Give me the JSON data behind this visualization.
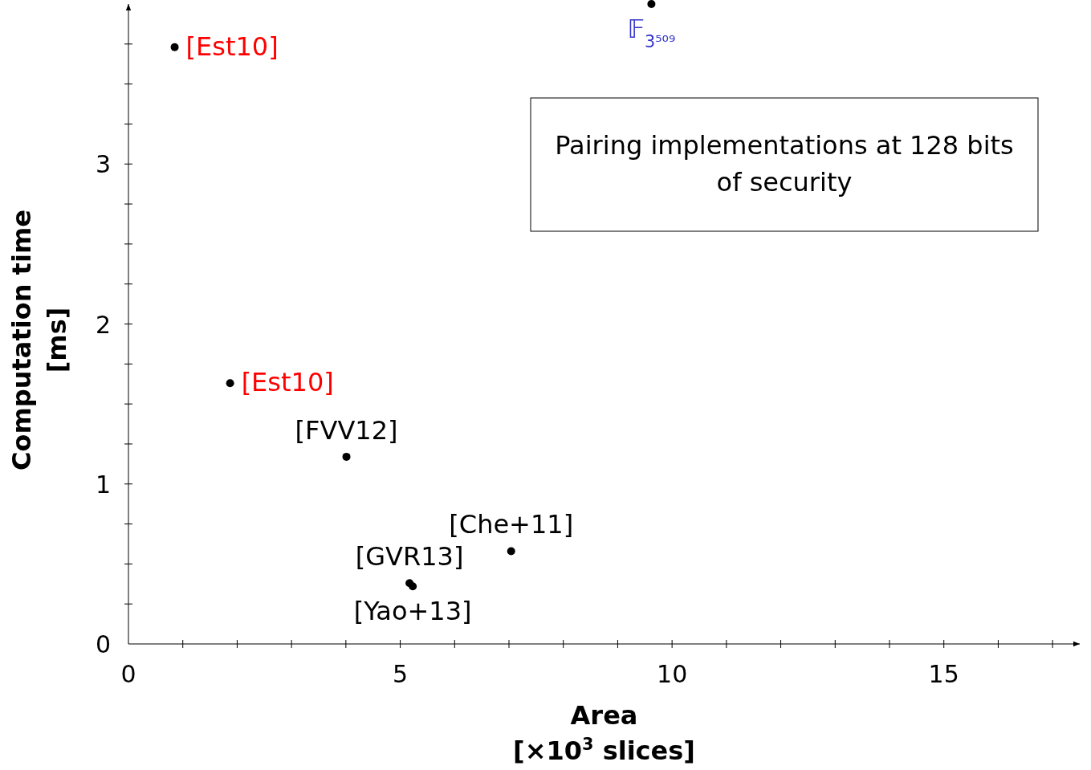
{
  "chart_data": {
    "type": "scatter",
    "xlabel": "Area\n[×10$^{3}$ slices]",
    "ylabel": "Computation time\n[ms]",
    "x": [
      0.85,
      1.87,
      4.01,
      7.04,
      5.17,
      5.23,
      9.62
    ],
    "values": [
      3.73,
      1.63,
      1.17,
      0.58,
      0.38,
      0.36,
      4.0
    ],
    "color": "#000000",
    "marker": "circle",
    "grid": false,
    "xlim": [
      0,
      17.5
    ],
    "ylim": [
      0,
      4
    ],
    "xticks": [
      0,
      {
        "value": 1,
        "label": null
      },
      {
        "value": 2,
        "label": null
      },
      {
        "value": 3,
        "label": null
      },
      {
        "value": 4,
        "label": null
      },
      5,
      {
        "value": 6,
        "label": null
      },
      {
        "value": 7,
        "label": null
      },
      {
        "value": 8,
        "label": null
      },
      {
        "value": 9,
        "label": null
      },
      10,
      {
        "value": 11,
        "label": null
      },
      {
        "value": 12,
        "label": null
      },
      {
        "value": 13,
        "label": null
      },
      {
        "value": 14,
        "label": null
      },
      15,
      {
        "value": 16,
        "label": null
      },
      {
        "value": 17,
        "label": null
      }
    ],
    "yticks": [
      0,
      {
        "value": 0.25,
        "label": null
      },
      {
        "value": 0.5,
        "label": null
      },
      {
        "value": 0.75,
        "label": null
      },
      1,
      {
        "value": 1.25,
        "label": null
      },
      {
        "value": 1.5,
        "label": null
      },
      {
        "value": 1.75,
        "label": null
      },
      2,
      {
        "value": 2.25,
        "label": null
      },
      {
        "value": 2.5,
        "label": null
      },
      {
        "value": 2.75,
        "label": null
      },
      3,
      {
        "value": 3.25,
        "label": null
      },
      {
        "value": 3.5,
        "label": null
      },
      {
        "value": 3.75,
        "label": null
      }
    ],
    "annotations": [
      {
        "text": "[Est10]",
        "x": 0.85,
        "y": 3.73
      },
      {
        "text": "[Est10]",
        "x": 1.87,
        "y": 1.63
      },
      {
        "text": "[FVV12]",
        "x": 4.01,
        "y": 1.17
      },
      {
        "text": "[Che+11]",
        "x": 7.04,
        "y": 0.58
      },
      {
        "text": "[GVR13]",
        "x": 5.17,
        "y": 0.38
      },
      {
        "text": "[Yao+13]",
        "x": 5.23,
        "y": 0.36
      },
      {
        "text": "𝔽$_{3⁵⁰⁹}$",
        "x": 9.62,
        "y": 4.0
      },
      "Pairing implementations at 128 bits of security"
    ]
  }
}
